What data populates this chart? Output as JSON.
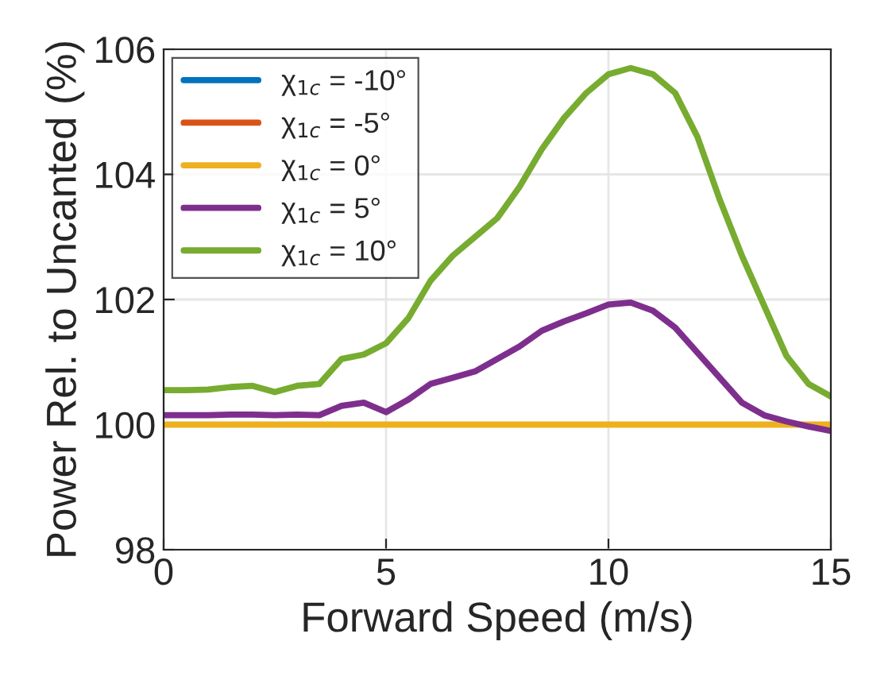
{
  "chart_data": {
    "type": "line",
    "xlabel": "Forward Speed (m/s)",
    "ylabel": "Power Rel. to Uncanted (%)",
    "x": [
      0,
      0.5,
      1,
      1.5,
      2,
      2.5,
      3,
      3.5,
      4,
      4.5,
      5,
      5.5,
      6,
      6.5,
      7,
      7.5,
      8,
      8.5,
      9,
      9.5,
      10,
      10.5,
      11,
      11.5,
      12,
      12.5,
      13,
      13.5,
      14,
      14.5,
      15
    ],
    "series": [
      {
        "name": "χ$_{1c}$ = -10°",
        "color": "#0072bd",
        "values": [
          null,
          null,
          null,
          null,
          null,
          null,
          null,
          null,
          null,
          null,
          null,
          null,
          null,
          null,
          null,
          null,
          null,
          null,
          null,
          null,
          null,
          null,
          null,
          null,
          null,
          null,
          null,
          null,
          null,
          null,
          null
        ]
      },
      {
        "name": "χ$_{1c}$ = -5°",
        "color": "#d95319",
        "values": [
          null,
          null,
          null,
          null,
          null,
          null,
          null,
          null,
          null,
          null,
          null,
          null,
          null,
          null,
          null,
          null,
          null,
          null,
          null,
          null,
          null,
          null,
          null,
          null,
          null,
          null,
          null,
          null,
          null,
          null,
          null
        ]
      },
      {
        "name": "χ$_{1c}$ = 0°",
        "color": "#edb120",
        "values": [
          100,
          100,
          100,
          100,
          100,
          100,
          100,
          100,
          100,
          100,
          100,
          100,
          100,
          100,
          100,
          100,
          100,
          100,
          100,
          100,
          100,
          100,
          100,
          100,
          100,
          100,
          100,
          100,
          100,
          100,
          100
        ]
      },
      {
        "name": "χ$_{1c}$ = 5°",
        "color": "#7e2f8e",
        "values": [
          100.15,
          100.15,
          100.15,
          100.16,
          100.16,
          100.15,
          100.16,
          100.15,
          100.3,
          100.35,
          100.2,
          100.4,
          100.65,
          100.75,
          100.85,
          101.05,
          101.25,
          101.5,
          101.65,
          101.78,
          101.92,
          101.95,
          101.82,
          101.55,
          101.15,
          100.75,
          100.35,
          100.15,
          100.05,
          99.97,
          99.9
        ]
      },
      {
        "name": "χ$_{1c}$ = 10°",
        "color": "#77ac30",
        "values": [
          100.55,
          100.55,
          100.56,
          100.6,
          100.62,
          100.52,
          100.62,
          100.65,
          101.05,
          101.12,
          101.3,
          101.7,
          102.3,
          102.7,
          103.0,
          103.3,
          103.8,
          104.4,
          104.9,
          105.3,
          105.6,
          105.7,
          105.6,
          105.3,
          104.6,
          103.6,
          102.7,
          101.9,
          101.1,
          100.65,
          100.45
        ]
      }
    ],
    "xlim": [
      0,
      15
    ],
    "xticks": [
      0,
      5,
      10,
      15
    ],
    "ylim": [
      98,
      106
    ],
    "yticks": [
      98,
      100,
      102,
      104,
      106
    ],
    "grid": true,
    "legend": "top left"
  }
}
